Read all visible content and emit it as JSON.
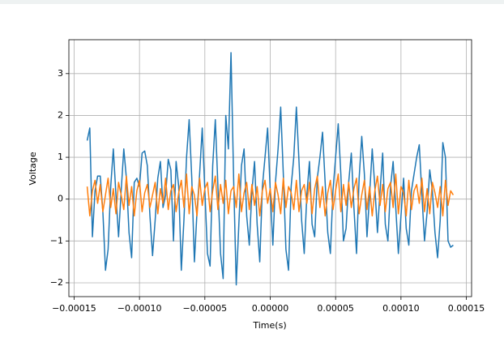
{
  "chart_data": {
    "type": "line",
    "xlabel": "Time(s)",
    "ylabel": "Voltage",
    "x": [
      -0.00014,
      -0.000138,
      -0.000136,
      -0.000134,
      -0.000132,
      -0.00013,
      -0.000128,
      -0.000126,
      -0.000124,
      -0.000122,
      -0.00012,
      -0.000118,
      -0.000116,
      -0.000114,
      -0.000112,
      -0.00011,
      -0.000108,
      -0.000106,
      -0.000104,
      -0.000102,
      -0.0001,
      -9.8e-05,
      -9.6e-05,
      -9.4e-05,
      -9.2e-05,
      -9e-05,
      -8.8e-05,
      -8.6e-05,
      -8.4e-05,
      -8.2e-05,
      -8e-05,
      -7.8e-05,
      -7.6e-05,
      -7.4e-05,
      -7.2e-05,
      -7e-05,
      -6.8e-05,
      -6.6e-05,
      -6.4e-05,
      -6.2e-05,
      -6e-05,
      -5.8e-05,
      -5.6e-05,
      -5.4e-05,
      -5.2e-05,
      -5e-05,
      -4.8e-05,
      -4.6e-05,
      -4.4e-05,
      -4.2e-05,
      -4e-05,
      -3.8e-05,
      -3.6e-05,
      -3.4e-05,
      -3.2e-05,
      -3e-05,
      -2.8e-05,
      -2.6e-05,
      -2.4e-05,
      -2.2e-05,
      -2e-05,
      -1.8e-05,
      -1.6e-05,
      -1.4e-05,
      -1.2e-05,
      -1e-05,
      -8e-06,
      -6e-06,
      -4e-06,
      -2e-06,
      0,
      2e-06,
      4e-06,
      6e-06,
      8e-06,
      1e-05,
      1.2e-05,
      1.4e-05,
      1.6e-05,
      1.8e-05,
      2e-05,
      2.2e-05,
      2.4e-05,
      2.6e-05,
      2.8e-05,
      3e-05,
      3.2e-05,
      3.4e-05,
      3.6e-05,
      3.8e-05,
      4e-05,
      4.2e-05,
      4.4e-05,
      4.6e-05,
      4.8e-05,
      5e-05,
      5.2e-05,
      5.4e-05,
      5.6e-05,
      5.8e-05,
      6e-05,
      6.2e-05,
      6.4e-05,
      6.6e-05,
      6.8e-05,
      7e-05,
      7.2e-05,
      7.4e-05,
      7.6e-05,
      7.8e-05,
      8e-05,
      8.2e-05,
      8.4e-05,
      8.6e-05,
      8.8e-05,
      9e-05,
      9.2e-05,
      9.4e-05,
      9.6e-05,
      9.8e-05,
      0.0001,
      0.000102,
      0.000104,
      0.000106,
      0.000108,
      0.00011,
      0.000112,
      0.000114,
      0.000116,
      0.000118,
      0.00012,
      0.000122,
      0.000124,
      0.000126,
      0.000128,
      0.00013,
      0.000132,
      0.000134,
      0.000136,
      0.000138,
      0.00014
    ],
    "series": [
      {
        "color": "#1f77b4",
        "values": [
          1.4,
          1.7,
          -0.9,
          0.2,
          0.55,
          0.55,
          -0.3,
          -1.7,
          -1.2,
          0.3,
          1.2,
          0.1,
          -0.9,
          0.2,
          1.2,
          0.5,
          -0.8,
          -1.4,
          0.4,
          0.5,
          0.3,
          1.1,
          1.15,
          0.8,
          -0.4,
          -1.35,
          -0.5,
          0.5,
          0.9,
          -0.2,
          0.1,
          0.95,
          0.7,
          -1.0,
          0.9,
          0.3,
          -1.7,
          -0.5,
          1.0,
          1.9,
          0.5,
          -1.5,
          -0.3,
          0.6,
          1.7,
          0.2,
          -1.3,
          -1.6,
          0.8,
          1.9,
          0.3,
          -1.3,
          -1.9,
          2.0,
          1.2,
          3.5,
          0.5,
          -2.05,
          -0.6,
          0.8,
          1.2,
          -0.4,
          -1.1,
          0.2,
          0.9,
          -0.6,
          -1.5,
          0.3,
          1.0,
          1.7,
          0.2,
          -1.1,
          0.4,
          1.2,
          2.2,
          0.6,
          -1.2,
          -1.7,
          0.3,
          1.0,
          2.2,
          0.9,
          -0.5,
          -1.3,
          0.1,
          0.9,
          -0.6,
          -0.9,
          0.5,
          1.0,
          1.6,
          0.4,
          -0.8,
          -1.3,
          0.2,
          1.0,
          1.8,
          0.6,
          -1.0,
          -0.7,
          0.4,
          1.1,
          -0.2,
          -1.3,
          0.5,
          1.5,
          0.6,
          -0.9,
          0.1,
          1.2,
          0.3,
          -0.8,
          0.2,
          1.1,
          -0.6,
          -1.0,
          0.3,
          0.9,
          -0.2,
          -1.3,
          -0.4,
          0.5,
          -0.7,
          -1.1,
          0.2,
          0.6,
          1.0,
          1.3,
          0.1,
          -1.0,
          -0.3,
          0.7,
          0.2,
          -0.8,
          -1.4,
          -0.5,
          1.35,
          1.0,
          -1.0,
          -1.15,
          -1.1
        ]
      },
      {
        "color": "#ff7f0e",
        "values": [
          0.3,
          -0.4,
          0.2,
          0.45,
          -0.1,
          0.35,
          -0.3,
          0.1,
          0.5,
          -0.2,
          0.25,
          -0.35,
          0.4,
          0.1,
          -0.25,
          0.55,
          -0.15,
          0.3,
          -0.4,
          0.2,
          0.45,
          -0.3,
          0.15,
          0.35,
          -0.2,
          0.1,
          0.4,
          -0.35,
          0.25,
          -0.1,
          0.5,
          -0.25,
          0.2,
          0.35,
          -0.3,
          0.15,
          0.45,
          -0.2,
          0.6,
          -0.35,
          0.3,
          0.1,
          -0.4,
          0.5,
          -0.15,
          0.25,
          0.4,
          -0.3,
          0.2,
          0.55,
          -0.25,
          0.35,
          -0.1,
          0.45,
          -0.35,
          0.2,
          0.3,
          -0.2,
          0.6,
          -0.3,
          0.15,
          0.4,
          -0.25,
          0.35,
          -0.15,
          0.3,
          -0.4,
          0.2,
          0.45,
          -0.1,
          0.25,
          -0.3,
          0.4,
          0.1,
          -0.35,
          0.5,
          -0.2,
          0.3,
          0.15,
          -0.25,
          0.45,
          -0.3,
          0.2,
          0.35,
          -0.1,
          0.4,
          -0.35,
          0.25,
          0.55,
          -0.2,
          0.3,
          -0.4,
          0.15,
          0.45,
          -0.25,
          0.2,
          0.6,
          -0.3,
          0.35,
          -0.15,
          0.4,
          -0.2,
          0.25,
          0.5,
          -0.35,
          0.1,
          0.45,
          -0.25,
          0.3,
          -0.4,
          0.2,
          0.55,
          -0.15,
          0.35,
          -0.3,
          0.25,
          0.4,
          -0.2,
          0.6,
          -0.35,
          0.3,
          0.15,
          -0.4,
          0.45,
          -0.25,
          0.2,
          0.35,
          -0.1,
          0.5,
          -0.3,
          0.25,
          -0.35,
          0.4,
          0.15,
          -0.2,
          0.3,
          -0.4,
          0.45,
          -0.15,
          0.2,
          0.1
        ]
      }
    ],
    "xlim": [
      -0.000154,
      0.000154
    ],
    "xticks": [
      {
        "value": -0.00015,
        "label": "−0.00015"
      },
      {
        "value": -0.0001,
        "label": "−0.00010"
      },
      {
        "value": -5e-05,
        "label": "−0.00005"
      },
      {
        "value": 0,
        "label": "0.00000"
      },
      {
        "value": 5e-05,
        "label": "0.00005"
      },
      {
        "value": 0.0001,
        "label": "0.00010"
      },
      {
        "value": 0.00015,
        "label": "0.00015"
      }
    ],
    "ylim": [
      -2.33,
      3.81
    ],
    "yticks": [
      {
        "value": -2,
        "label": "−2"
      },
      {
        "value": -1,
        "label": "−1"
      },
      0,
      1,
      2,
      3
    ],
    "grid": true
  }
}
